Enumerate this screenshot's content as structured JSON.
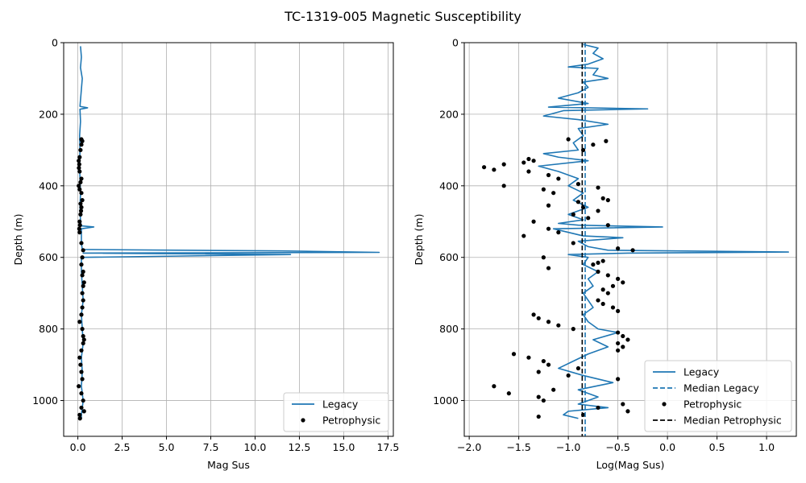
{
  "figure_title": "TC-1319-005 Magnetic Susceptibility",
  "colors": {
    "legacy": "#1f77b4",
    "petro": "#000000",
    "grid": "#b0b0b0"
  },
  "chart_data": [
    {
      "type": "line",
      "xlabel": "Mag Sus",
      "ylabel": "Depth (m)",
      "xlim": [
        -0.8,
        17.8
      ],
      "ylim": [
        1100,
        0
      ],
      "y_inverted": true,
      "grid": true,
      "xticks": [
        0.0,
        2.5,
        5.0,
        7.5,
        10.0,
        12.5,
        15.0,
        17.5
      ],
      "xtick_labels": [
        "0.0",
        "2.5",
        "5.0",
        "7.5",
        "10.0",
        "12.5",
        "15.0",
        "17.5"
      ],
      "yticks": [
        0,
        200,
        400,
        600,
        800,
        1000
      ],
      "ytick_labels": [
        "0",
        "200",
        "400",
        "600",
        "800",
        "1000"
      ],
      "legend_position": "lower-right",
      "legend": [
        "Legacy",
        "Petrophysic"
      ],
      "series": [
        {
          "name": "Legacy",
          "kind": "line",
          "depth": [
            10,
            40,
            70,
            100,
            130,
            160,
            178,
            182,
            186,
            220,
            260,
            300,
            340,
            380,
            420,
            460,
            500,
            512,
            515,
            520,
            560,
            578,
            582,
            586,
            588,
            592,
            600,
            640,
            680,
            720,
            760,
            800,
            840,
            880,
            920,
            960,
            1000,
            1040,
            1050
          ],
          "values": [
            0.15,
            0.2,
            0.15,
            0.25,
            0.2,
            0.15,
            0.12,
            0.55,
            0.12,
            0.15,
            0.1,
            0.12,
            0.1,
            0.12,
            0.15,
            0.12,
            0.15,
            0.2,
            0.9,
            0.2,
            0.2,
            0.25,
            11.5,
            17.0,
            0.3,
            12.0,
            0.2,
            0.2,
            0.25,
            0.3,
            0.2,
            0.25,
            0.3,
            0.2,
            0.25,
            0.2,
            0.3,
            0.2,
            0.2
          ]
        },
        {
          "name": "Petrophysic",
          "kind": "scatter",
          "depth": [
            270,
            275,
            285,
            300,
            320,
            330,
            340,
            350,
            360,
            380,
            390,
            400,
            410,
            420,
            440,
            450,
            460,
            470,
            480,
            500,
            510,
            520,
            530,
            560,
            580,
            600,
            620,
            640,
            650,
            670,
            680,
            700,
            720,
            740,
            760,
            780,
            800,
            820,
            830,
            840,
            860,
            880,
            900,
            920,
            940,
            960,
            980,
            1000,
            1020,
            1030,
            1040,
            1050
          ],
          "values": [
            0.2,
            0.25,
            0.2,
            0.15,
            0.1,
            0.05,
            0.08,
            0.06,
            0.1,
            0.2,
            0.15,
            0.05,
            0.1,
            0.2,
            0.25,
            0.15,
            0.2,
            0.18,
            0.15,
            0.1,
            0.12,
            0.08,
            0.1,
            0.2,
            0.3,
            0.25,
            0.2,
            0.3,
            0.25,
            0.35,
            0.3,
            0.25,
            0.3,
            0.25,
            0.2,
            0.1,
            0.25,
            0.3,
            0.35,
            0.3,
            0.2,
            0.1,
            0.15,
            0.2,
            0.25,
            0.05,
            0.2,
            0.3,
            0.2,
            0.35,
            0.1,
            0.12
          ]
        }
      ]
    },
    {
      "type": "line",
      "xlabel": "Log(Mag Sus)",
      "ylabel": "Depth (m)",
      "xlim": [
        -2.05,
        1.3
      ],
      "ylim": [
        1100,
        0
      ],
      "y_inverted": true,
      "grid": true,
      "xticks": [
        -2.0,
        -1.5,
        -1.0,
        -0.5,
        0.0,
        0.5,
        1.0
      ],
      "xtick_labels": [
        "−2.0",
        "−1.5",
        "−1.0",
        "−0.5",
        "0.0",
        "0.5",
        "1.0"
      ],
      "yticks": [
        0,
        200,
        400,
        600,
        800,
        1000
      ],
      "ytick_labels": [
        "0",
        "200",
        "400",
        "600",
        "800",
        "1000"
      ],
      "legend_position": "lower-right",
      "legend": [
        "Legacy",
        "Median Legacy",
        "Petrophysic",
        "Median Petrophysic"
      ],
      "series": [
        {
          "name": "Legacy",
          "kind": "line",
          "depth": [
            5,
            15,
            30,
            45,
            60,
            68,
            72,
            90,
            100,
            110,
            125,
            140,
            155,
            170,
            180,
            185,
            190,
            205,
            215,
            228,
            240,
            260,
            280,
            300,
            310,
            320,
            330,
            345,
            360,
            380,
            400,
            420,
            440,
            460,
            480,
            495,
            505,
            510,
            515,
            520,
            540,
            545,
            555,
            570,
            580,
            585,
            588,
            592,
            600,
            620,
            640,
            660,
            680,
            700,
            720,
            740,
            760,
            780,
            800,
            810,
            830,
            850,
            870,
            890,
            910,
            930,
            950,
            970,
            990,
            1010,
            1020,
            1030,
            1040,
            1050
          ],
          "values": [
            -0.85,
            -0.7,
            -0.75,
            -0.65,
            -0.8,
            -1.0,
            -0.7,
            -0.75,
            -0.6,
            -0.85,
            -0.8,
            -0.9,
            -1.1,
            -0.8,
            -1.2,
            -0.2,
            -1.05,
            -1.25,
            -0.9,
            -0.6,
            -0.9,
            -0.85,
            -0.95,
            -0.9,
            -1.25,
            -1.1,
            -0.8,
            -1.3,
            -1.1,
            -0.9,
            -1.0,
            -0.85,
            -0.95,
            -0.8,
            -1.0,
            -0.85,
            -1.1,
            -0.9,
            -0.05,
            -1.15,
            -0.85,
            -0.45,
            -0.9,
            -0.8,
            -0.6,
            1.22,
            -0.4,
            -1.0,
            -0.8,
            -0.85,
            -0.7,
            -0.8,
            -0.75,
            -0.85,
            -0.8,
            -0.75,
            -0.85,
            -0.8,
            -0.7,
            -0.5,
            -0.75,
            -0.6,
            -0.8,
            -0.95,
            -1.1,
            -0.85,
            -0.55,
            -0.9,
            -0.7,
            -0.9,
            -0.6,
            -1.0,
            -1.05,
            -0.9
          ]
        },
        {
          "name": "Petrophysic",
          "kind": "scatter",
          "depth": [
            270,
            275,
            285,
            300,
            325,
            330,
            335,
            340,
            348,
            355,
            360,
            370,
            380,
            395,
            400,
            405,
            410,
            420,
            435,
            440,
            445,
            455,
            460,
            470,
            480,
            490,
            500,
            510,
            520,
            530,
            540,
            560,
            575,
            580,
            600,
            610,
            615,
            620,
            630,
            640,
            650,
            660,
            670,
            680,
            690,
            700,
            720,
            730,
            740,
            750,
            760,
            770,
            780,
            790,
            800,
            810,
            820,
            830,
            840,
            850,
            860,
            870,
            880,
            890,
            900,
            910,
            920,
            930,
            940,
            960,
            970,
            980,
            990,
            1000,
            1010,
            1020,
            1030,
            1040,
            1045
          ],
          "values": [
            -1.0,
            -0.62,
            -0.75,
            -0.85,
            -1.4,
            -1.35,
            -1.45,
            -1.65,
            -1.85,
            -1.75,
            -1.4,
            -1.2,
            -1.1,
            -0.9,
            -1.65,
            -0.7,
            -1.25,
            -1.15,
            -0.65,
            -0.6,
            -0.9,
            -1.2,
            -0.85,
            -0.7,
            -0.95,
            -0.8,
            -1.35,
            -0.6,
            -1.2,
            -1.1,
            -1.45,
            -0.95,
            -0.5,
            -0.35,
            -1.25,
            -0.65,
            -0.7,
            -0.75,
            -1.2,
            -0.7,
            -0.6,
            -0.5,
            -0.45,
            -0.55,
            -0.65,
            -0.6,
            -0.7,
            -0.65,
            -0.55,
            -0.5,
            -1.35,
            -1.3,
            -1.2,
            -1.1,
            -0.95,
            -0.5,
            -0.45,
            -0.4,
            -0.5,
            -0.45,
            -0.5,
            -1.55,
            -1.4,
            -1.25,
            -1.2,
            -0.9,
            -1.3,
            -1.0,
            -0.5,
            -1.75,
            -1.15,
            -1.6,
            -1.3,
            -1.25,
            -0.45,
            -0.7,
            -0.4,
            -0.85,
            -1.3
          ]
        },
        {
          "name": "Median Legacy",
          "kind": "vline",
          "x": -0.83
        },
        {
          "name": "Median Petrophysic",
          "kind": "vline",
          "x": -0.86
        }
      ]
    }
  ]
}
